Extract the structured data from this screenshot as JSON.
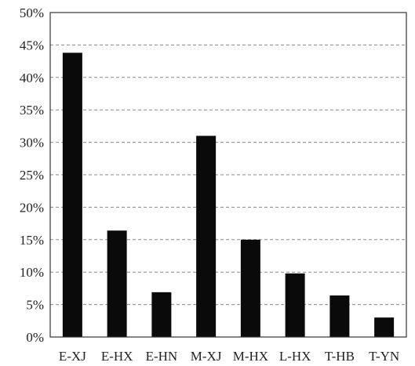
{
  "chart_data": {
    "type": "bar",
    "title": "",
    "xlabel": "",
    "ylabel": "",
    "categories": [
      "E-XJ",
      "E-HX",
      "E-HN",
      "M-XJ",
      "M-HX",
      "L-HX",
      "T-HB",
      "T-YN"
    ],
    "values": [
      43.8,
      16.4,
      6.9,
      31.0,
      15.0,
      9.8,
      6.4,
      3.0
    ],
    "value_format": "percent",
    "ylim": [
      0,
      50
    ],
    "yticks": [
      0,
      5,
      10,
      15,
      20,
      25,
      30,
      35,
      40,
      45,
      50
    ],
    "ytick_labels": [
      "0%",
      "5%",
      "10%",
      "15%",
      "20%",
      "25%",
      "30%",
      "35%",
      "40%",
      "45%",
      "50%"
    ],
    "grid": "horizontal dashed",
    "legend": "none",
    "colors": {
      "bar": "#0a0a0a",
      "axis": "#333333",
      "grid": "#8a8a8a"
    }
  }
}
